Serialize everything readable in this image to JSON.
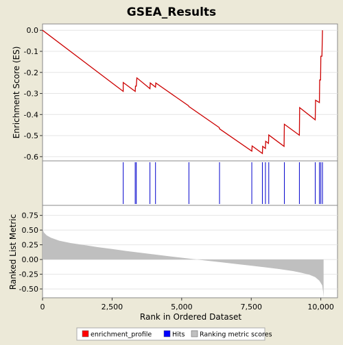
{
  "chart_data": {
    "type": "line",
    "title": "GSEA_Results",
    "xlabel": "Rank in Ordered Dataset",
    "xlim": [
      0,
      10600
    ],
    "x_ticks": [
      {
        "value": 0,
        "label": "0"
      },
      {
        "value": 2500,
        "label": "2,500"
      },
      {
        "value": 5000,
        "label": "5,000"
      },
      {
        "value": 7500,
        "label": "7,500"
      },
      {
        "value": 10000,
        "label": "10,000"
      }
    ],
    "panels": {
      "enrichment": {
        "ylabel": "Enrichment Score (ES)",
        "ylim": [
          -0.62,
          0.03
        ],
        "y_ticks": [
          {
            "value": 0.0,
            "label": "0.0"
          },
          {
            "value": -0.1,
            "label": "-0.1"
          },
          {
            "value": -0.2,
            "label": "-0.2"
          },
          {
            "value": -0.3,
            "label": "-0.3"
          },
          {
            "value": -0.4,
            "label": "-0.4"
          },
          {
            "value": -0.5,
            "label": "-0.5"
          },
          {
            "value": -0.6,
            "label": "-0.6"
          }
        ],
        "series": [
          {
            "name": "enrichment_profile",
            "color": "#cc0000",
            "points": [
              [
                0,
                0.0
              ],
              [
                2900,
                -0.29
              ],
              [
                2900,
                -0.248
              ],
              [
                3330,
                -0.29
              ],
              [
                3340,
                -0.265
              ],
              [
                3370,
                -0.265
              ],
              [
                3390,
                -0.226
              ],
              [
                3860,
                -0.277
              ],
              [
                3870,
                -0.25
              ],
              [
                4060,
                -0.27
              ],
              [
                4070,
                -0.25
              ],
              [
                5240,
                -0.358
              ],
              [
                5260,
                -0.362
              ],
              [
                6350,
                -0.462
              ],
              [
                6360,
                -0.468
              ],
              [
                7520,
                -0.574
              ],
              [
                7530,
                -0.549
              ],
              [
                7900,
                -0.585
              ],
              [
                7910,
                -0.551
              ],
              [
                8010,
                -0.561
              ],
              [
                8020,
                -0.527
              ],
              [
                8120,
                -0.537
              ],
              [
                8130,
                -0.497
              ],
              [
                8680,
                -0.551
              ],
              [
                8690,
                -0.446
              ],
              [
                9230,
                -0.498
              ],
              [
                9240,
                -0.367
              ],
              [
                9800,
                -0.425
              ],
              [
                9810,
                -0.332
              ],
              [
                9950,
                -0.343
              ],
              [
                9960,
                -0.236
              ],
              [
                9990,
                -0.236
              ],
              [
                10000,
                -0.123
              ],
              [
                10040,
                -0.123
              ],
              [
                10060,
                0.0
              ]
            ]
          }
        ]
      },
      "hits": {
        "legend_name": "Hits",
        "color": "#0000cc",
        "positions": [
          2900,
          3330,
          3370,
          3860,
          4060,
          5260,
          6360,
          7520,
          7900,
          8010,
          8130,
          8690,
          9230,
          9800,
          9950,
          10000,
          10060
        ]
      },
      "ranking_metric": {
        "ylabel": "Ranked List Metric",
        "ylim": [
          -0.65,
          0.92
        ],
        "y_ticks": [
          {
            "value": 0.75,
            "label": "0.75"
          },
          {
            "value": 0.5,
            "label": "0.50"
          },
          {
            "value": 0.25,
            "label": "0.25"
          },
          {
            "value": 0.0,
            "label": "0.00"
          },
          {
            "value": -0.25,
            "label": "-0.25"
          },
          {
            "value": -0.5,
            "label": "-0.50"
          }
        ],
        "legend_name": "Ranking metric scores",
        "color": "#b8b8b8",
        "profile": [
          [
            0,
            0.52
          ],
          [
            50,
            0.46
          ],
          [
            150,
            0.41
          ],
          [
            300,
            0.37
          ],
          [
            600,
            0.32
          ],
          [
            1000,
            0.28
          ],
          [
            1500,
            0.245
          ],
          [
            2000,
            0.21
          ],
          [
            2500,
            0.178
          ],
          [
            3000,
            0.146
          ],
          [
            3500,
            0.116
          ],
          [
            4000,
            0.087
          ],
          [
            4500,
            0.058
          ],
          [
            5000,
            0.03
          ],
          [
            5500,
            0.003
          ],
          [
            6000,
            -0.024
          ],
          [
            6500,
            -0.051
          ],
          [
            7000,
            -0.079
          ],
          [
            7500,
            -0.105
          ],
          [
            8000,
            -0.132
          ],
          [
            8500,
            -0.162
          ],
          [
            9000,
            -0.197
          ],
          [
            9300,
            -0.225
          ],
          [
            9600,
            -0.26
          ],
          [
            9800,
            -0.3
          ],
          [
            9950,
            -0.36
          ],
          [
            10050,
            -0.44
          ],
          [
            10080,
            -0.54
          ],
          [
            10100,
            -0.64
          ]
        ]
      }
    },
    "legend": {
      "placement": "bottom",
      "entries": [
        {
          "name": "enrichment_profile",
          "color": "#ff0000"
        },
        {
          "name": "Hits",
          "color": "#0000ff"
        },
        {
          "name": "Ranking metric scores",
          "color": "#c0c0c0"
        }
      ]
    }
  }
}
